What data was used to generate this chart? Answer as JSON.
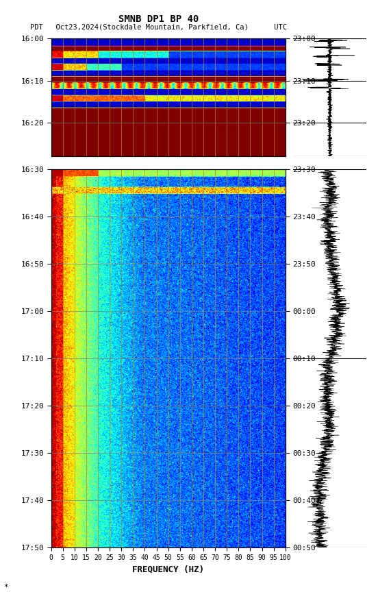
{
  "title_line1": "SMNB DP1 BP 40",
  "title_line2": "PDT   Oct23,2024(Stockdale Mountain, Parkfield, Ca)      UTC",
  "xlabel": "FREQUENCY (HZ)",
  "freq_ticks": [
    0,
    5,
    10,
    15,
    20,
    25,
    30,
    35,
    40,
    45,
    50,
    55,
    60,
    65,
    70,
    75,
    80,
    85,
    90,
    95,
    100
  ],
  "left_time_labels_seg1": [
    "16:00",
    "16:10",
    "16:20"
  ],
  "right_time_labels_seg1": [
    "23:00",
    "23:10",
    "23:20"
  ],
  "left_time_labels_seg2": [
    "16:30",
    "16:40",
    "16:50",
    "17:00",
    "17:10",
    "17:20",
    "17:30",
    "17:40",
    "17:50"
  ],
  "right_time_labels_seg2": [
    "23:30",
    "23:40",
    "23:50",
    "00:00",
    "00:10",
    "00:20",
    "00:30",
    "00:40",
    "00:50"
  ],
  "fig_width": 5.52,
  "fig_height": 8.64,
  "dpi": 100,
  "colormap": "jet",
  "background_color": "#ffffff",
  "vgrid_color": "#b8860b",
  "hgrid_color": "#808080"
}
